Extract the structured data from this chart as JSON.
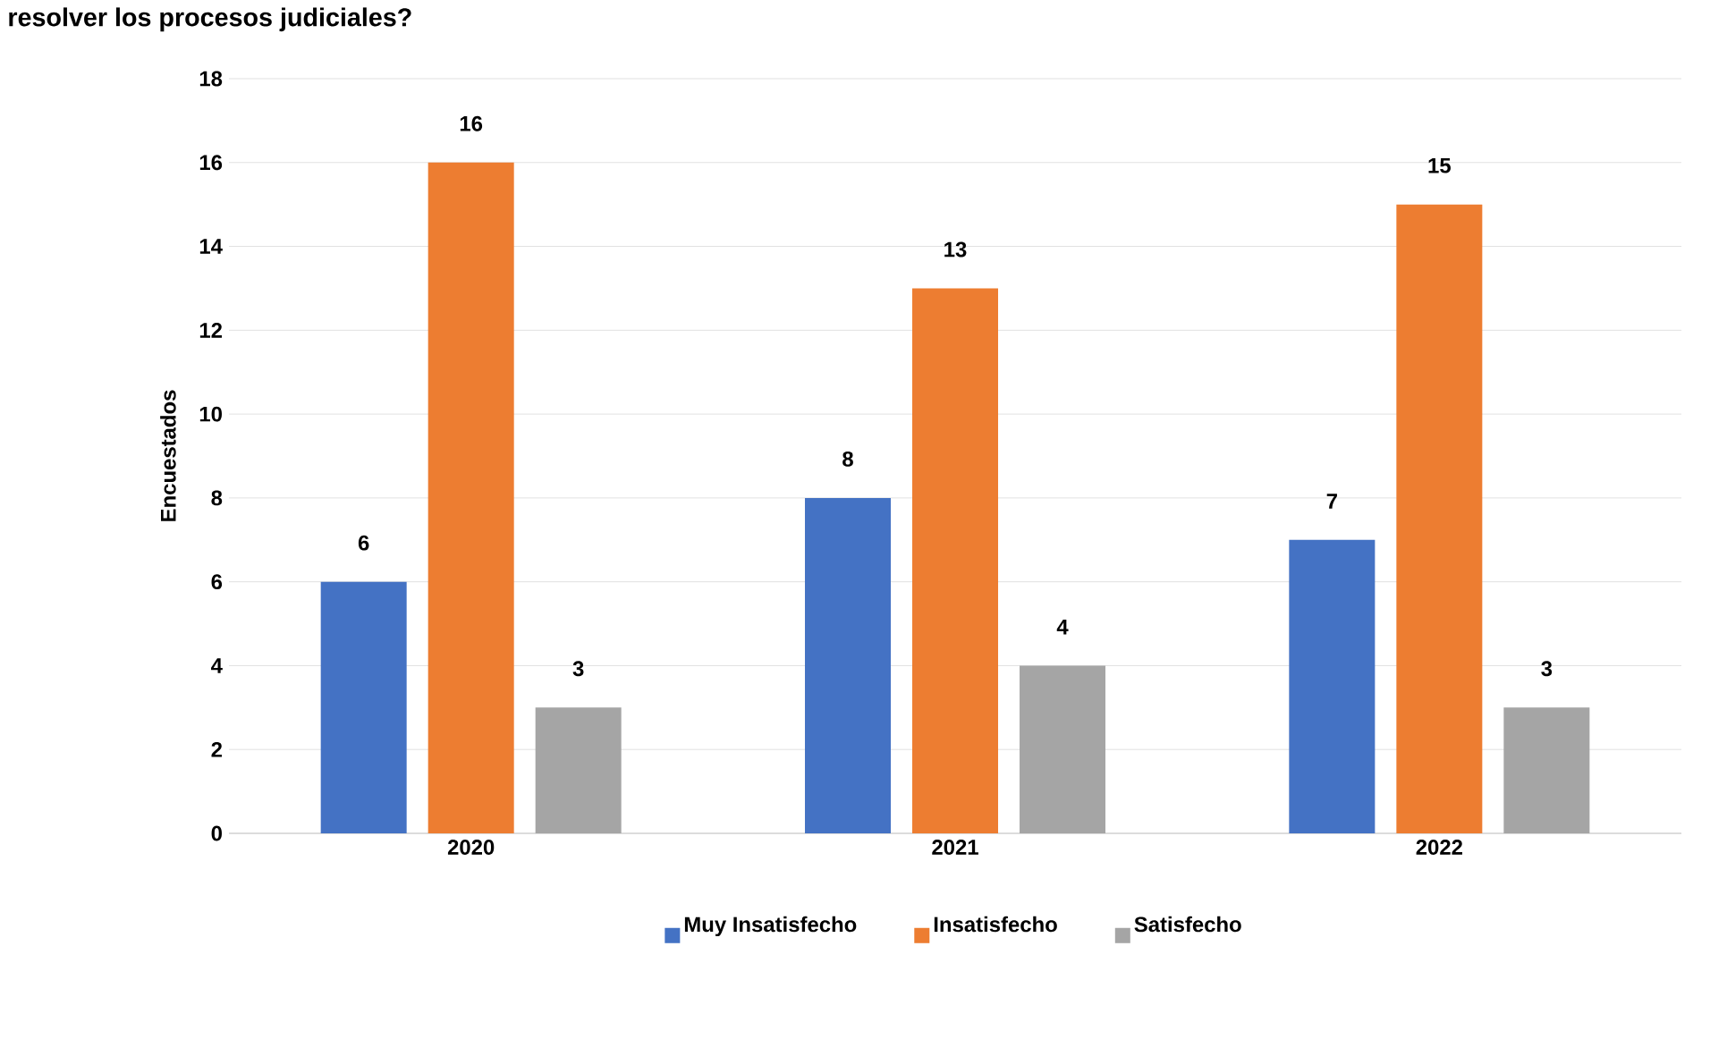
{
  "chart_data": {
    "type": "bar",
    "title": "resolver los procesos judiciales?",
    "ylabel": "Encuestados",
    "categories": [
      "2020",
      "2021",
      "2022"
    ],
    "series": [
      {
        "name": "Muy Insatisfecho",
        "color": "#4472c4",
        "values": [
          6,
          8,
          7
        ]
      },
      {
        "name": "Insatisfecho",
        "color": "#ed7d31",
        "values": [
          16,
          13,
          15
        ]
      },
      {
        "name": "Satisfecho",
        "color": "#a5a5a5",
        "values": [
          3,
          4,
          3
        ]
      }
    ],
    "ylim": [
      0,
      18
    ],
    "yticks": [
      0,
      2,
      4,
      6,
      8,
      10,
      12,
      14,
      16,
      18
    ],
    "grid": "y",
    "legend": "bottom",
    "data_labels": true
  }
}
